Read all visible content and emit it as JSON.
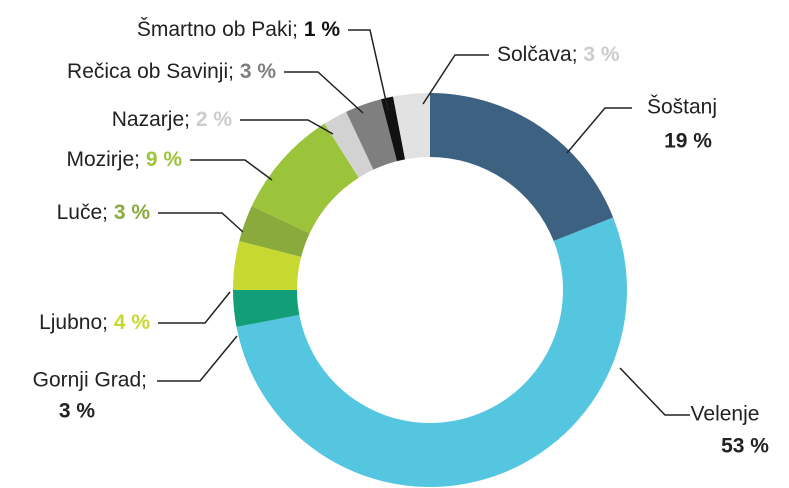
{
  "chart_data": {
    "type": "donut",
    "categories": [
      "Šoštanj",
      "Velenje",
      "Gornji Grad;",
      "Ljubno;",
      "Luče;",
      "Mozirje;",
      "Nazarje;",
      "Rečica ob Savinji;",
      "Šmartno ob Paki;",
      "Solčava;"
    ],
    "values": [
      19,
      53,
      3,
      4,
      3,
      9,
      2,
      3,
      1,
      3
    ],
    "value_labels": [
      "19 %",
      "53 %",
      "3 %",
      "4 %",
      "3 %",
      "9 %",
      "2 %",
      "3 %",
      "1 %",
      "3 %"
    ],
    "colors": [
      "#3d6180",
      "#55c6e0",
      "#139e7a",
      "#c7d930",
      "#8aaa3c",
      "#9cc43a",
      "#d2d2d2",
      "#7f7f7f",
      "#111111",
      "#e2e2e2"
    ],
    "label_colors": [
      "#3d6180",
      "#55c6e0",
      "#139e7a",
      "#c7d930",
      "#8aaa3c",
      "#9cc43a",
      "#cccccc",
      "#7f7f7f",
      "#111111",
      "#cccccc"
    ]
  }
}
